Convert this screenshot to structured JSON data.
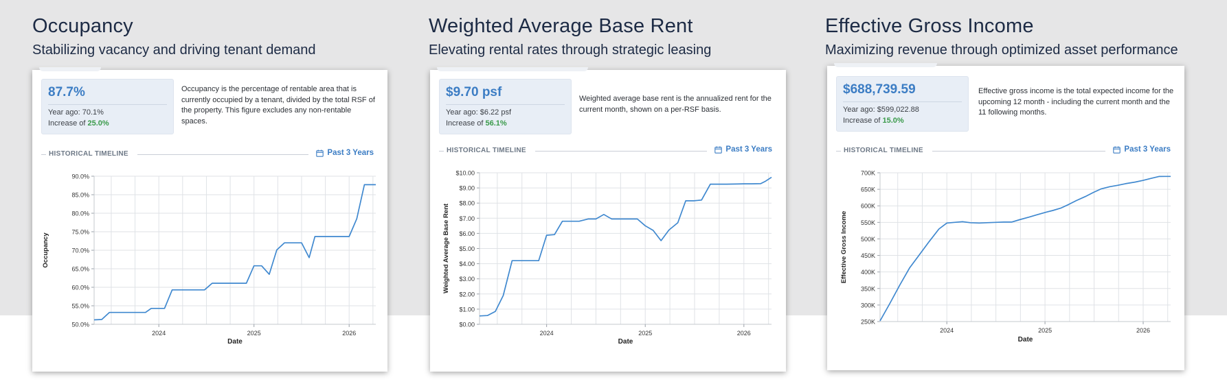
{
  "sections": [
    {
      "title": "Occupancy",
      "subtitle": "Stabilizing vacancy and driving tenant demand",
      "metric": {
        "value": "87.7%",
        "year_ago_label": "Year ago: 70.1%",
        "increase_prefix": "Increase of ",
        "increase_value": "25.0%"
      },
      "description": "Occupancy is the percentage of rentable area that is currently occupied by a tenant, divided by the total RSF of the property. This figure excludes any non-rentable spaces.",
      "timeline_label": "HISTORICAL TIMELINE",
      "range_label": "Past 3 Years"
    },
    {
      "title": "Weighted Average Base Rent",
      "subtitle": "Elevating rental rates through strategic leasing",
      "metric": {
        "value": "$9.70 psf",
        "year_ago_label": "Year ago: $6.22 psf",
        "increase_prefix": "Increase of ",
        "increase_value": "56.1%"
      },
      "description": "Weighted average base rent is the annualized rent for the current month, shown on a per-RSF basis.",
      "timeline_label": "HISTORICAL TIMELINE",
      "range_label": "Past 3 Years"
    },
    {
      "title": "Effective Gross Income",
      "subtitle": "Maximizing revenue through optimized asset performance",
      "metric": {
        "value": "$688,739.59",
        "year_ago_label": "Year ago: $599,022.88",
        "increase_prefix": "Increase of ",
        "increase_value": "15.0%"
      },
      "description": "Effective gross income is the total expected income for the upcoming 12 month - including the current month and the 11 following months.",
      "timeline_label": "HISTORICAL TIMELINE",
      "range_label": "Past 3 Years"
    }
  ],
  "colors": {
    "accent": "#3c7dc4",
    "positive": "#3a9a4a",
    "line": "#3f88cf",
    "heading": "#1c2a44"
  },
  "icons": {
    "range": "calendar-icon"
  },
  "chart_data": [
    {
      "type": "line",
      "title": "",
      "xlabel": "Date",
      "ylabel": "Occupancy",
      "xlim": [
        2023.32,
        2026.28
      ],
      "ylim": [
        50,
        90
      ],
      "xticks": [
        2024,
        2025,
        2026
      ],
      "yticks": [
        "50.0%",
        "55.0%",
        "60.0%",
        "65.0%",
        "70.0%",
        "75.0%",
        "80.0%",
        "85.0%",
        "90.0%"
      ],
      "ytick_values": [
        50,
        55,
        60,
        65,
        70,
        75,
        80,
        85,
        90
      ],
      "grid": true,
      "series": [
        {
          "x": [
            2023.32,
            2023.4,
            2023.48,
            2023.6,
            2023.72,
            2023.81,
            2023.86,
            2023.92,
            2024.0,
            2024.06,
            2024.14,
            2024.26,
            2024.38,
            2024.48,
            2024.56,
            2024.72,
            2024.92,
            2025.0,
            2025.08,
            2025.16,
            2025.24,
            2025.32,
            2025.4,
            2025.5,
            2025.58,
            2025.64,
            2025.72,
            2025.82,
            2025.92,
            2026.0,
            2026.08,
            2026.16,
            2026.22,
            2026.28
          ],
          "y": [
            51.2,
            51.3,
            53.2,
            53.2,
            53.2,
            53.2,
            53.2,
            54.3,
            54.3,
            54.3,
            59.3,
            59.3,
            59.3,
            59.3,
            61.1,
            61.1,
            61.1,
            65.8,
            65.8,
            63.5,
            70.1,
            72.0,
            72.0,
            72.0,
            68.0,
            73.7,
            73.7,
            73.7,
            73.7,
            73.7,
            78.5,
            87.7,
            87.7,
            87.7
          ]
        }
      ]
    },
    {
      "type": "line",
      "title": "",
      "xlabel": "Date",
      "ylabel": "Weighted Average Base Rent",
      "xlim": [
        2023.32,
        2026.28
      ],
      "ylim": [
        0,
        10
      ],
      "xticks": [
        2024,
        2025,
        2026
      ],
      "yticks": [
        "$0.00",
        "$1.00",
        "$2.00",
        "$3.00",
        "$4.00",
        "$5.00",
        "$6.00",
        "$7.00",
        "$8.00",
        "$9.00",
        "$10.00"
      ],
      "ytick_values": [
        0,
        1,
        2,
        3,
        4,
        5,
        6,
        7,
        8,
        9,
        10
      ],
      "grid": true,
      "series": [
        {
          "x": [
            2023.32,
            2023.4,
            2023.48,
            2023.56,
            2023.65,
            2023.72,
            2023.82,
            2023.92,
            2024.0,
            2024.08,
            2024.16,
            2024.24,
            2024.33,
            2024.42,
            2024.5,
            2024.58,
            2024.66,
            2024.74,
            2024.82,
            2024.92,
            2025.0,
            2025.08,
            2025.16,
            2025.24,
            2025.33,
            2025.41,
            2025.49,
            2025.57,
            2025.66,
            2025.74,
            2025.82,
            2025.92,
            2026.0,
            2026.08,
            2026.17,
            2026.22,
            2026.28
          ],
          "y": [
            0.55,
            0.58,
            0.85,
            1.9,
            4.2,
            4.2,
            4.2,
            4.2,
            5.88,
            5.92,
            6.8,
            6.8,
            6.8,
            6.95,
            6.95,
            7.25,
            6.95,
            6.95,
            6.95,
            6.95,
            6.5,
            6.2,
            5.52,
            6.22,
            6.7,
            8.15,
            8.15,
            8.2,
            9.25,
            9.25,
            9.25,
            9.26,
            9.27,
            9.27,
            9.28,
            9.45,
            9.7
          ]
        }
      ]
    },
    {
      "type": "line",
      "title": "",
      "xlabel": "Date",
      "ylabel": "Effective Gross Income",
      "xlim": [
        2023.32,
        2026.28
      ],
      "ylim": [
        250000,
        700000
      ],
      "xticks": [
        2024,
        2025,
        2026
      ],
      "yticks": [
        "250K",
        "300K",
        "350K",
        "400K",
        "450K",
        "500K",
        "550K",
        "600K",
        "650K",
        "700K"
      ],
      "ytick_values": [
        250000,
        300000,
        350000,
        400000,
        450000,
        500000,
        550000,
        600000,
        650000,
        700000
      ],
      "grid": true,
      "series": [
        {
          "x": [
            2023.32,
            2023.42,
            2023.52,
            2023.62,
            2023.72,
            2023.82,
            2023.92,
            2024.0,
            2024.08,
            2024.16,
            2024.24,
            2024.33,
            2024.41,
            2024.5,
            2024.58,
            2024.66,
            2024.74,
            2024.84,
            2024.92,
            2025.0,
            2025.08,
            2025.16,
            2025.24,
            2025.32,
            2025.41,
            2025.49,
            2025.57,
            2025.66,
            2025.74,
            2025.82,
            2025.92,
            2026.0,
            2026.08,
            2026.16,
            2026.22,
            2026.28
          ],
          "y": [
            252000,
            305000,
            360000,
            412000,
            452000,
            492000,
            530000,
            548000,
            550000,
            552000,
            549000,
            548000,
            549000,
            550000,
            551000,
            551000,
            558000,
            566000,
            573000,
            580000,
            586000,
            593000,
            604000,
            616000,
            628000,
            640000,
            651000,
            658000,
            662000,
            667000,
            672000,
            677000,
            683000,
            688700,
            689000,
            689000
          ]
        }
      ]
    }
  ]
}
